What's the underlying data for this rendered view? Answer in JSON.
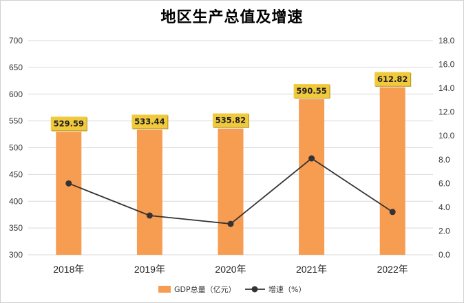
{
  "chart_data": {
    "type": "bar",
    "title": "地区生产总值及增速",
    "categories": [
      "2018年",
      "2019年",
      "2020年",
      "2021年",
      "2022年"
    ],
    "series": [
      {
        "name": "GDP总量（亿元）",
        "type": "bar",
        "axis": "left",
        "values": [
          529.59,
          533.44,
          535.82,
          590.55,
          612.82
        ],
        "color": "#F79D51",
        "label_color": "#F0C93C"
      },
      {
        "name": "增速（%）",
        "type": "line",
        "axis": "right",
        "values": [
          6.0,
          3.3,
          2.6,
          8.1,
          3.6
        ],
        "color": "#333333"
      }
    ],
    "y_left": {
      "range": [
        300,
        700
      ],
      "ticks": [
        "300",
        "350",
        "400",
        "450",
        "500",
        "550",
        "600",
        "650",
        "700"
      ]
    },
    "y_right": {
      "range": [
        0.0,
        18.0
      ],
      "ticks": [
        "0.0",
        "2.0",
        "4.0",
        "6.0",
        "8.0",
        "10.0",
        "12.0",
        "14.0",
        "16.0",
        "18.0"
      ]
    },
    "data_labels": [
      "529.59",
      "533.44",
      "535.82",
      "590.55",
      "612.82"
    ],
    "grid": true,
    "legend": "bottom-center"
  }
}
